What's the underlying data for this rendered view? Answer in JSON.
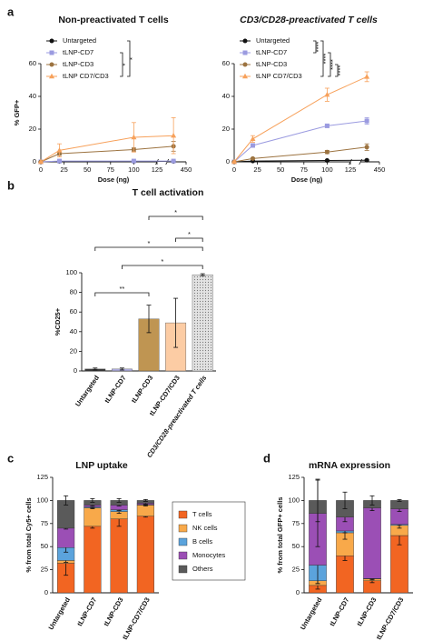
{
  "chart_data": [
    {
      "type": "line",
      "panel_label": "a",
      "title": "Non-preactivated T cells",
      "xlabel": "Dose (ng)",
      "ylabel": "% GFP+",
      "x": [
        0,
        20,
        100,
        400
      ],
      "xlim": [
        0,
        450
      ],
      "xbreak": [
        125,
        375
      ],
      "xticks": [
        0,
        25,
        50,
        75,
        100,
        125,
        450
      ],
      "ylim": [
        0,
        60
      ],
      "yticks": [
        0,
        20,
        40,
        60
      ],
      "series": [
        {
          "name": "Untargeted",
          "color": "#111111",
          "marker": "circle",
          "values": [
            0,
            0.3,
            0.3,
            0.3
          ],
          "errors": [
            0,
            0.2,
            0.2,
            0.2
          ]
        },
        {
          "name": "tLNP-CD7",
          "color": "#9b9be0",
          "marker": "square",
          "values": [
            0,
            0.5,
            0.5,
            0.5
          ],
          "errors": [
            0,
            0.2,
            0.2,
            0.2
          ]
        },
        {
          "name": "tLNP-CD3",
          "color": "#9c7340",
          "marker": "circle",
          "values": [
            0,
            5,
            7.5,
            9.5
          ],
          "errors": [
            0,
            1,
            1,
            3
          ]
        },
        {
          "name": "tLNP CD7/CD3",
          "color": "#f7a15b",
          "marker": "triangle",
          "values": [
            0,
            7,
            15,
            16
          ],
          "errors": [
            0,
            4,
            9,
            11
          ]
        }
      ],
      "significance": [
        "*",
        "*"
      ]
    },
    {
      "type": "line",
      "title": "CD3/CD28-preactivated T cells",
      "xlabel": "Dose (ng)",
      "x": [
        0,
        20,
        100,
        400
      ],
      "xlim": [
        0,
        450
      ],
      "xbreak": [
        125,
        375
      ],
      "xticks": [
        0,
        25,
        50,
        75,
        100,
        125,
        450
      ],
      "ylim": [
        0,
        60
      ],
      "yticks": [
        0,
        20,
        40,
        60
      ],
      "series": [
        {
          "name": "Untargeted",
          "color": "#111111",
          "marker": "circle",
          "values": [
            0,
            0.5,
            0.8,
            1
          ],
          "errors": [
            0,
            0.2,
            0.3,
            0.3
          ]
        },
        {
          "name": "tLNP-CD7",
          "color": "#9b9be0",
          "marker": "square",
          "values": [
            0,
            10,
            22,
            25
          ],
          "errors": [
            0,
            1,
            1,
            2
          ]
        },
        {
          "name": "tLNP-CD3",
          "color": "#9c7340",
          "marker": "circle",
          "values": [
            0,
            2,
            6,
            9
          ],
          "errors": [
            0,
            0.5,
            1,
            2
          ]
        },
        {
          "name": "tLNP CD7/CD3",
          "color": "#f7a15b",
          "marker": "triangle",
          "values": [
            0,
            14,
            41,
            52
          ],
          "errors": [
            0,
            2,
            4,
            3
          ]
        }
      ],
      "significance": [
        "****",
        "****",
        "****",
        "****"
      ]
    },
    {
      "type": "bar",
      "panel_label": "b",
      "title": "T cell activation",
      "ylabel": "%CD25+",
      "categories": [
        "Untargeted",
        "tLNP-CD7",
        "tLNP-CD3",
        "tLNP-CD7/CD3",
        "CD3/CD28-preactivated T cells"
      ],
      "values": [
        2,
        2,
        53,
        49,
        98
      ],
      "errors": [
        1,
        1,
        14,
        25,
        1
      ],
      "colors": [
        "#222222",
        "#a9a6e0",
        "#b8893f",
        "#fcc79a",
        "#e2e2e2"
      ],
      "ylim": [
        0,
        100
      ],
      "yticks": [
        0,
        20,
        40,
        60,
        80,
        100
      ],
      "significance": [
        "*",
        "*",
        "*",
        "*",
        "**"
      ]
    },
    {
      "type": "stacked_bar",
      "panel_label": "c",
      "title": "LNP uptake",
      "ylabel": "% from total Cy5+ cells",
      "categories": [
        "Untargeted",
        "tLNP-CD7",
        "tLNP-CD3",
        "tLNP-CD7/CD3"
      ],
      "ylim": [
        0,
        125
      ],
      "yticks": [
        0,
        25,
        50,
        75,
        100,
        125
      ],
      "series": [
        {
          "name": "T cells",
          "color": "#f26522",
          "values": [
            32,
            72,
            80,
            83
          ],
          "errors": [
            13,
            2,
            8,
            1
          ]
        },
        {
          "name": "NK cells",
          "color": "#f8a94a",
          "values": [
            3,
            20,
            8,
            12
          ],
          "errors": [
            2,
            1,
            2,
            1
          ]
        },
        {
          "name": "B cells",
          "color": "#5ba3dc",
          "values": [
            14,
            1,
            2,
            0.5
          ],
          "errors": [
            5,
            1,
            1,
            0.5
          ]
        },
        {
          "name": "Monocytes",
          "color": "#9b4fb5",
          "values": [
            21,
            2,
            5,
            1.5
          ],
          "errors": [
            1,
            1,
            1,
            1
          ]
        },
        {
          "name": "Others",
          "color": "#5a5a5a",
          "values": [
            30,
            5,
            5,
            3
          ],
          "errors": [
            5,
            2,
            2,
            1
          ]
        }
      ]
    },
    {
      "type": "stacked_bar",
      "panel_label": "d",
      "title": "mRNA expression",
      "ylabel": "% from total GFP+ cells",
      "categories": [
        "Untargeted",
        "tLNP-CD7",
        "tLNP-CD3",
        "tLNP-CD7/CD3"
      ],
      "ylim": [
        0,
        125
      ],
      "yticks": [
        0,
        25,
        50,
        75,
        100,
        125
      ],
      "series": [
        {
          "color": "#f26522",
          "values": [
            8,
            40,
            13,
            62
          ],
          "errors": [
            4,
            5,
            2,
            10
          ]
        },
        {
          "color": "#f8a94a",
          "values": [
            5,
            25,
            2,
            11
          ],
          "errors": [
            3,
            7,
            1,
            3
          ]
        },
        {
          "color": "#5ba3dc",
          "values": [
            17,
            2,
            0.5,
            1
          ],
          "errors": [
            20,
            2,
            0.5,
            1
          ]
        },
        {
          "color": "#9b4fb5",
          "values": [
            56,
            15,
            76.5,
            17
          ],
          "errors": [
            36,
            5,
            3,
            3
          ]
        },
        {
          "color": "#5a5a5a",
          "values": [
            14,
            18,
            8,
            9
          ],
          "errors": [
            23,
            9,
            5,
            1
          ]
        }
      ]
    }
  ]
}
